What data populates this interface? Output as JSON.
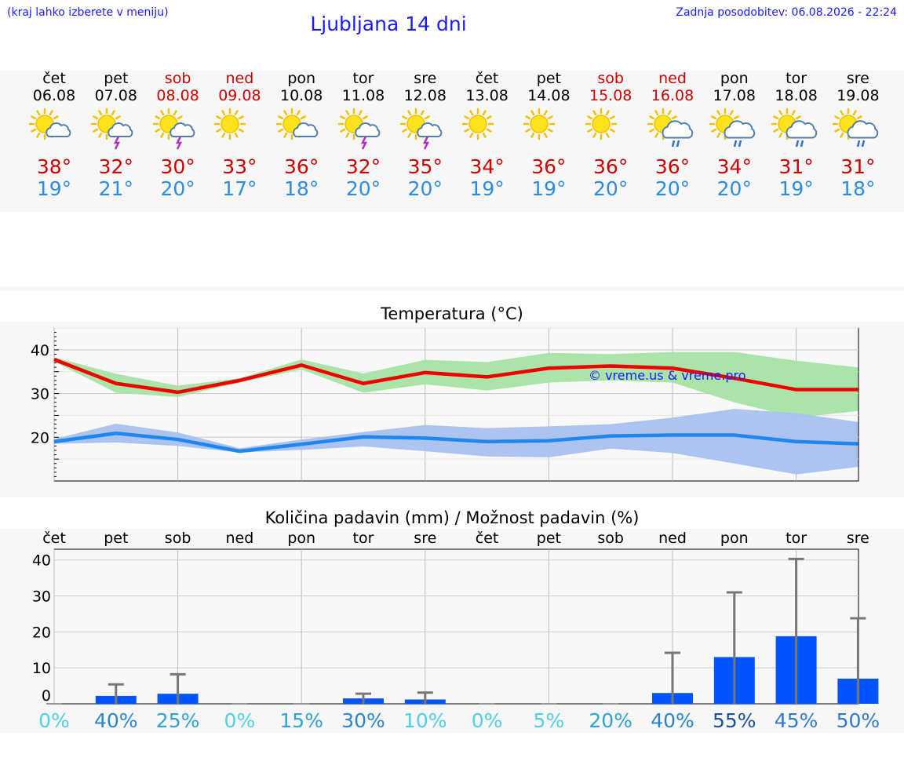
{
  "header": {
    "hint": "(kraj lahko izberete v meniju)",
    "title": "Ljubljana 14 dni",
    "updated": "Zadnja posodobitev: 06.08.2026 - 22:24"
  },
  "colors": {
    "accent_text": "#1a1aff",
    "max_temp": "#d00000",
    "min_temp": "#2b8ce8",
    "max_band": "#a7e3a3",
    "min_band": "#a9c1f0",
    "max_line": "#ee0000",
    "min_line": "#1e88f0",
    "precip_bar": "#0055ff",
    "error_bar": "#777777"
  },
  "days": [
    {
      "name": "čet",
      "date": "06.08",
      "weekend": false,
      "icon": "sun-cloud-icon",
      "tmax": "38°",
      "tmin": "19°"
    },
    {
      "name": "pet",
      "date": "07.08",
      "weekend": false,
      "icon": "sun-storm-icon",
      "tmax": "32°",
      "tmin": "21°"
    },
    {
      "name": "sob",
      "date": "08.08",
      "weekend": true,
      "icon": "sun-storm-icon",
      "tmax": "30°",
      "tmin": "20°"
    },
    {
      "name": "ned",
      "date": "09.08",
      "weekend": true,
      "icon": "sun-icon",
      "tmax": "33°",
      "tmin": "17°"
    },
    {
      "name": "pon",
      "date": "10.08",
      "weekend": false,
      "icon": "sun-cloud-icon",
      "tmax": "36°",
      "tmin": "18°"
    },
    {
      "name": "tor",
      "date": "11.08",
      "weekend": false,
      "icon": "sun-storm-icon",
      "tmax": "32°",
      "tmin": "20°"
    },
    {
      "name": "sre",
      "date": "12.08",
      "weekend": false,
      "icon": "sun-storm-icon",
      "tmax": "35°",
      "tmin": "20°"
    },
    {
      "name": "čet",
      "date": "13.08",
      "weekend": false,
      "icon": "sun-icon",
      "tmax": "34°",
      "tmin": "19°"
    },
    {
      "name": "pet",
      "date": "14.08",
      "weekend": false,
      "icon": "sun-icon",
      "tmax": "36°",
      "tmin": "19°"
    },
    {
      "name": "sob",
      "date": "15.08",
      "weekend": true,
      "icon": "sun-icon",
      "tmax": "36°",
      "tmin": "20°"
    },
    {
      "name": "ned",
      "date": "16.08",
      "weekend": true,
      "icon": "sun-rain-icon",
      "tmax": "36°",
      "tmin": "20°"
    },
    {
      "name": "pon",
      "date": "17.08",
      "weekend": false,
      "icon": "sun-rain-icon",
      "tmax": "34°",
      "tmin": "20°"
    },
    {
      "name": "tor",
      "date": "18.08",
      "weekend": false,
      "icon": "sun-rain-icon",
      "tmax": "31°",
      "tmin": "19°"
    },
    {
      "name": "sre",
      "date": "19.08",
      "weekend": false,
      "icon": "sun-rain-icon",
      "tmax": "31°",
      "tmin": "18°"
    }
  ],
  "chart_data": [
    {
      "type": "line",
      "title": "Temperatura (°C)",
      "watermark": "© vreme.us & vreme.pro",
      "ylim": [
        10,
        45
      ],
      "yticks": [
        "20",
        "30",
        "40"
      ],
      "grid": true,
      "series": [
        {
          "values": [
            37.8,
            32.3,
            30.3,
            33.0,
            36.5,
            32.3,
            34.8,
            33.8,
            35.8,
            36.3,
            35.8,
            33.5,
            30.9,
            30.9
          ],
          "band_low": [
            37.3,
            30.2,
            29.2,
            32.5,
            35.5,
            30.2,
            32.1,
            30.7,
            32.5,
            33.0,
            32.5,
            28.0,
            24.5,
            26.0
          ],
          "band_high": [
            38.3,
            34.5,
            31.8,
            33.5,
            37.8,
            34.6,
            37.7,
            37.2,
            39.3,
            39.0,
            39.5,
            39.5,
            37.5,
            36.0
          ]
        },
        {
          "values": [
            19.0,
            20.9,
            19.5,
            16.8,
            18.4,
            20.1,
            19.8,
            19.0,
            19.2,
            20.3,
            20.5,
            20.5,
            19.0,
            18.5
          ],
          "band_low": [
            18.5,
            18.8,
            18.0,
            16.5,
            17.1,
            17.9,
            16.8,
            15.6,
            15.4,
            17.4,
            16.4,
            14.0,
            11.5,
            13.2
          ],
          "band_high": [
            19.6,
            23.1,
            21.1,
            17.5,
            19.5,
            21.2,
            22.8,
            22.1,
            22.5,
            23.0,
            24.5,
            26.5,
            25.5,
            23.5
          ]
        }
      ]
    },
    {
      "type": "bar",
      "title": "Količina padavin (mm) / Možnost padavin (%)",
      "categories": [
        "čet",
        "pet",
        "sob",
        "ned",
        "pon",
        "tor",
        "sre",
        "čet",
        "pet",
        "sob",
        "ned",
        "pon",
        "tor",
        "sre"
      ],
      "ylim": [
        0,
        43
      ],
      "yticks": [
        "0",
        "10",
        "20",
        "30",
        "40"
      ],
      "grid": true,
      "values": [
        0,
        2.2,
        2.8,
        0,
        0,
        1.5,
        1.2,
        0,
        0,
        0,
        3.0,
        13.0,
        18.8,
        7.0
      ],
      "error_high": [
        0,
        5.4,
        8.2,
        0,
        0,
        2.8,
        3.1,
        0,
        0,
        0,
        14.2,
        31.0,
        40.3,
        23.8
      ],
      "probabilities": [
        "0%",
        "40%",
        "25%",
        "0%",
        "15%",
        "30%",
        "10%",
        "0%",
        "5%",
        "20%",
        "40%",
        "55%",
        "45%",
        "50%"
      ]
    }
  ]
}
